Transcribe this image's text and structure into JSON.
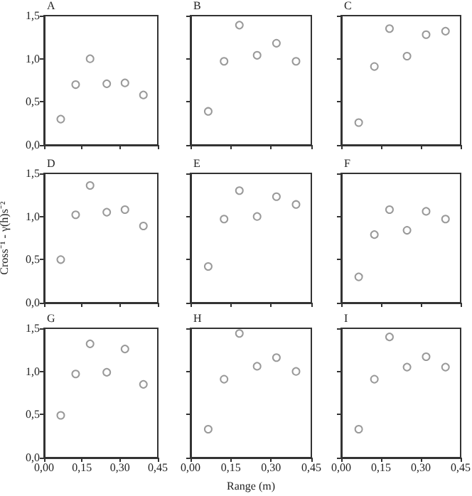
{
  "chart_data": [
    {
      "type": "scatter",
      "title": "A",
      "x": [
        0.066,
        0.125,
        0.182,
        0.248,
        0.32,
        0.393
      ],
      "values": [
        0.3,
        0.7,
        1.0,
        0.71,
        0.72,
        0.58
      ],
      "color": "#7f7f7f",
      "marker": "circle",
      "xlim": [
        0,
        0.45
      ],
      "xticks": [
        {
          "value": 0,
          "label": null
        },
        {
          "value": 0.15,
          "label": null
        },
        {
          "value": 0.3,
          "label": null
        },
        {
          "value": 0.45,
          "label": null
        }
      ],
      "ylim": [
        0,
        1.5
      ],
      "yticks": [
        {
          "value": 0,
          "label": "0,0"
        },
        {
          "value": 0.5,
          "label": "0,5"
        },
        {
          "value": 1,
          "label": "1,0"
        },
        {
          "value": 1.5,
          "label": "1,5"
        }
      ],
      "tick_labels": "y"
    },
    {
      "type": "scatter",
      "title": "B",
      "x": [
        0.066,
        0.125,
        0.182,
        0.248,
        0.32,
        0.393
      ],
      "values": [
        0.39,
        0.97,
        1.39,
        1.04,
        1.18,
        0.97
      ],
      "color": "#7f7f7f",
      "marker": "circle",
      "xlim": [
        0,
        0.45
      ],
      "xticks": [
        {
          "value": 0,
          "label": null
        },
        {
          "value": 0.15,
          "label": null
        },
        {
          "value": 0.3,
          "label": null
        },
        {
          "value": 0.45,
          "label": null
        }
      ],
      "ylim": [
        0,
        1.5
      ],
      "yticks": [
        {
          "value": 0,
          "label": null
        },
        {
          "value": 0.5,
          "label": null
        },
        {
          "value": 1,
          "label": null
        },
        {
          "value": 1.5,
          "label": null
        }
      ],
      "tick_labels": false
    },
    {
      "type": "scatter",
      "title": "C",
      "x": [
        0.066,
        0.125,
        0.182,
        0.248,
        0.32,
        0.393
      ],
      "values": [
        0.26,
        0.91,
        1.35,
        1.03,
        1.28,
        1.32
      ],
      "color": "#7f7f7f",
      "marker": "circle",
      "xlim": [
        0,
        0.45
      ],
      "xticks": [
        {
          "value": 0,
          "label": null
        },
        {
          "value": 0.15,
          "label": null
        },
        {
          "value": 0.3,
          "label": null
        },
        {
          "value": 0.45,
          "label": null
        }
      ],
      "ylim": [
        0,
        1.5
      ],
      "yticks": [
        {
          "value": 0,
          "label": null
        },
        {
          "value": 0.5,
          "label": null
        },
        {
          "value": 1,
          "label": null
        },
        {
          "value": 1.5,
          "label": null
        }
      ],
      "tick_labels": false
    },
    {
      "type": "scatter",
      "title": "D",
      "ylabel": "Cross⁻¹ - γ(h)s⁻²",
      "x": [
        0.066,
        0.125,
        0.182,
        0.248,
        0.32,
        0.393
      ],
      "values": [
        0.5,
        1.02,
        1.36,
        1.05,
        1.08,
        0.89
      ],
      "color": "#7f7f7f",
      "marker": "circle",
      "xlim": [
        0,
        0.45
      ],
      "xticks": [
        {
          "value": 0,
          "label": null
        },
        {
          "value": 0.15,
          "label": null
        },
        {
          "value": 0.3,
          "label": null
        },
        {
          "value": 0.45,
          "label": null
        }
      ],
      "ylim": [
        0,
        1.5
      ],
      "yticks": [
        {
          "value": 0,
          "label": "0,0"
        },
        {
          "value": 0.5,
          "label": "0,5"
        },
        {
          "value": 1,
          "label": "1,0"
        },
        {
          "value": 1.5,
          "label": "1,5"
        }
      ],
      "tick_labels": "y"
    },
    {
      "type": "scatter",
      "title": "E",
      "x": [
        0.066,
        0.125,
        0.182,
        0.248,
        0.32,
        0.393
      ],
      "values": [
        0.42,
        0.97,
        1.3,
        1.0,
        1.23,
        1.14
      ],
      "color": "#7f7f7f",
      "marker": "circle",
      "xlim": [
        0,
        0.45
      ],
      "xticks": [
        {
          "value": 0,
          "label": null
        },
        {
          "value": 0.15,
          "label": null
        },
        {
          "value": 0.3,
          "label": null
        },
        {
          "value": 0.45,
          "label": null
        }
      ],
      "ylim": [
        0,
        1.5
      ],
      "yticks": [
        {
          "value": 0,
          "label": null
        },
        {
          "value": 0.5,
          "label": null
        },
        {
          "value": 1,
          "label": null
        },
        {
          "value": 1.5,
          "label": null
        }
      ],
      "tick_labels": false
    },
    {
      "type": "scatter",
      "title": "F",
      "x": [
        0.066,
        0.125,
        0.182,
        0.248,
        0.32,
        0.393
      ],
      "values": [
        0.3,
        0.79,
        1.08,
        0.84,
        1.06,
        0.97
      ],
      "color": "#7f7f7f",
      "marker": "circle",
      "xlim": [
        0,
        0.45
      ],
      "xticks": [
        {
          "value": 0,
          "label": null
        },
        {
          "value": 0.15,
          "label": null
        },
        {
          "value": 0.3,
          "label": null
        },
        {
          "value": 0.45,
          "label": null
        }
      ],
      "ylim": [
        0,
        1.5
      ],
      "yticks": [
        {
          "value": 0,
          "label": null
        },
        {
          "value": 0.5,
          "label": null
        },
        {
          "value": 1,
          "label": null
        },
        {
          "value": 1.5,
          "label": null
        }
      ],
      "tick_labels": false
    },
    {
      "type": "scatter",
      "title": "G",
      "x": [
        0.066,
        0.125,
        0.182,
        0.248,
        0.32,
        0.393
      ],
      "values": [
        0.49,
        0.97,
        1.32,
        0.99,
        1.26,
        0.85
      ],
      "color": "#7f7f7f",
      "marker": "circle",
      "xlim": [
        0,
        0.45
      ],
      "xticks": [
        {
          "value": 0,
          "label": "0,00"
        },
        {
          "value": 0.15,
          "label": "0,15"
        },
        {
          "value": 0.3,
          "label": "0,30"
        },
        {
          "value": 0.45,
          "label": "0,45"
        }
      ],
      "ylim": [
        0,
        1.5
      ],
      "yticks": [
        {
          "value": 0,
          "label": "0,0"
        },
        {
          "value": 0.5,
          "label": "0,5"
        },
        {
          "value": 1,
          "label": "1,0"
        },
        {
          "value": 1.5,
          "label": "1,5"
        }
      ]
    },
    {
      "type": "scatter",
      "title": "H",
      "xlabel": "Range (m)",
      "x": [
        0.066,
        0.125,
        0.182,
        0.248,
        0.32,
        0.393
      ],
      "values": [
        0.33,
        0.91,
        1.44,
        1.06,
        1.16,
        1.0
      ],
      "color": "#7f7f7f",
      "marker": "circle",
      "xlim": [
        0,
        0.45
      ],
      "xticks": [
        {
          "value": 0,
          "label": "0,00"
        },
        {
          "value": 0.15,
          "label": "0,15"
        },
        {
          "value": 0.3,
          "label": "0,30"
        },
        {
          "value": 0.45,
          "label": "0,45"
        }
      ],
      "ylim": [
        0,
        1.5
      ],
      "yticks": [
        {
          "value": 0,
          "label": null
        },
        {
          "value": 0.5,
          "label": null
        },
        {
          "value": 1,
          "label": null
        },
        {
          "value": 1.5,
          "label": null
        }
      ],
      "tick_labels": "x"
    },
    {
      "type": "scatter",
      "title": "I",
      "x": [
        0.066,
        0.125,
        0.182,
        0.248,
        0.32,
        0.393
      ],
      "values": [
        0.33,
        0.91,
        1.4,
        1.05,
        1.17,
        1.05
      ],
      "color": "#7f7f7f",
      "marker": "circle",
      "xlim": [
        0,
        0.45
      ],
      "xticks": [
        {
          "value": 0,
          "label": "0,00"
        },
        {
          "value": 0.15,
          "label": "0,15"
        },
        {
          "value": 0.3,
          "label": "0,30"
        },
        {
          "value": 0.45,
          "label": "0,45"
        }
      ],
      "ylim": [
        0,
        1.5
      ],
      "yticks": [
        {
          "value": 0,
          "label": null
        },
        {
          "value": 0.5,
          "label": null
        },
        {
          "value": 1,
          "label": null
        },
        {
          "value": 1.5,
          "label": null
        }
      ],
      "tick_labels": "x"
    }
  ]
}
